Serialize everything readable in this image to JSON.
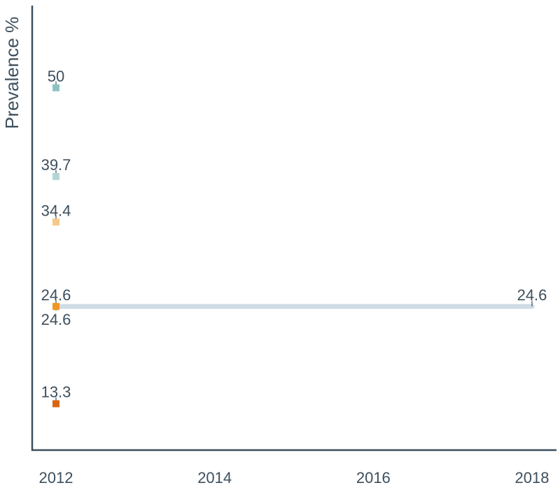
{
  "chart_data": {
    "type": "scatter",
    "title": "",
    "xlabel": "",
    "ylabel": "Prevalence %",
    "xlim": [
      2012,
      2018
    ],
    "ylim": [
      9.7,
      54.1
    ],
    "x_ticks": [
      "2012",
      "2014",
      "2016",
      "2018"
    ],
    "grid": false,
    "legend": "none",
    "points": [
      {
        "x": 2012,
        "y": 50,
        "label": "50",
        "color": "#8ec2c2",
        "label_pos": "above"
      },
      {
        "x": 2012,
        "y": 39.7,
        "label": "39.7",
        "color": "#b3d6d3",
        "label_pos": "above"
      },
      {
        "x": 2012,
        "y": 34.4,
        "label": "34.4",
        "color": "#f5c98a",
        "label_pos": "above"
      },
      {
        "x": 2012,
        "y": 24.6,
        "label": "24.6",
        "color": "#ef9722",
        "label_pos": "above"
      },
      {
        "x": 2012,
        "y": 13.3,
        "label": "13.3",
        "color": "#d8650f",
        "label_pos": "above"
      }
    ],
    "series": [
      {
        "color": "#d0dbe5",
        "points": [
          {
            "x": 2012,
            "y": 24.6,
            "label": "24.6",
            "label_pos": "below"
          },
          {
            "x": 2018,
            "y": 24.6,
            "label": "24.6",
            "label_pos": "above"
          }
        ]
      }
    ]
  }
}
